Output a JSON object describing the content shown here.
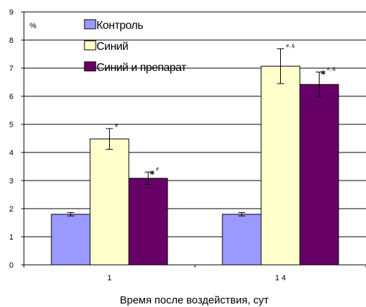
{
  "chart_data": {
    "type": "bar",
    "title": "",
    "xlabel": "Время после воздействия, сут",
    "ylabel": "%",
    "ylim": [
      0,
      9
    ],
    "yticks": [
      0,
      1,
      2,
      3,
      4,
      5,
      6,
      7,
      8,
      9
    ],
    "categories": [
      "1",
      "1 4"
    ],
    "grid": "horizontal",
    "legend_position": "top-left",
    "series": [
      {
        "name": "Контроль",
        "color": "#9999ff",
        "values": [
          1.8,
          1.8
        ],
        "errors": [
          0.06,
          0.06
        ]
      },
      {
        "name": "Синий",
        "color": "#ffffcc",
        "values": [
          4.48,
          7.07
        ],
        "errors": [
          0.37,
          0.62
        ]
      },
      {
        "name": "Синий и препарат",
        "color": "#660066",
        "values": [
          3.08,
          6.42
        ],
        "errors": [
          0.22,
          0.44
        ]
      }
    ],
    "annotations": [
      [
        {
          "series": 1,
          "star": "",
          "text": "#"
        },
        {
          "series": 2,
          "star": "*",
          "text": "#"
        }
      ],
      [
        {
          "series": 1,
          "star": "",
          "text": "#, &"
        },
        {
          "series": 2,
          "star": "*",
          "text": "#, &"
        }
      ]
    ]
  }
}
